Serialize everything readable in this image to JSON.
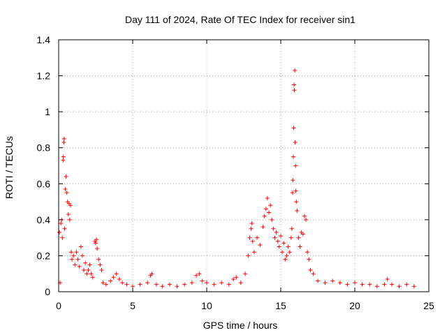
{
  "chart_data": {
    "type": "scatter",
    "title": "Day 111 of 2024, Rate Of TEC Index for receiver sin1",
    "xlabel": "GPS time / hours",
    "ylabel": "ROTI / TECUs",
    "xlim": [
      0,
      25
    ],
    "ylim": [
      0,
      1.4
    ],
    "x_ticks": [
      "0",
      "5",
      "10",
      "15",
      "20",
      "25"
    ],
    "y_ticks": [
      "0",
      "0.2",
      "0.4",
      "0.6",
      "0.8",
      "1",
      "1.2",
      "1.4"
    ],
    "grid": true,
    "marker": "+",
    "color": "#ff0000",
    "series": [
      {
        "name": "ROTI",
        "points": [
          [
            0.05,
            0.33
          ],
          [
            0.1,
            0.05
          ],
          [
            0.15,
            0.38
          ],
          [
            0.2,
            0.4
          ],
          [
            0.25,
            0.3
          ],
          [
            0.3,
            0.73
          ],
          [
            0.32,
            0.75
          ],
          [
            0.35,
            0.83
          ],
          [
            0.37,
            0.85
          ],
          [
            0.4,
            0.35
          ],
          [
            0.45,
            0.57
          ],
          [
            0.5,
            0.64
          ],
          [
            0.55,
            0.55
          ],
          [
            0.6,
            0.5
          ],
          [
            0.65,
            0.43
          ],
          [
            0.7,
            0.49
          ],
          [
            0.75,
            0.4
          ],
          [
            0.8,
            0.48
          ],
          [
            0.85,
            0.22
          ],
          [
            0.9,
            0.18
          ],
          [
            1.0,
            0.2
          ],
          [
            1.1,
            0.15
          ],
          [
            1.2,
            0.22
          ],
          [
            1.3,
            0.18
          ],
          [
            1.4,
            0.14
          ],
          [
            1.5,
            0.25
          ],
          [
            1.6,
            0.2
          ],
          [
            1.7,
            0.12
          ],
          [
            1.8,
            0.16
          ],
          [
            1.9,
            0.1
          ],
          [
            2.0,
            0.12
          ],
          [
            2.1,
            0.15
          ],
          [
            2.2,
            0.1
          ],
          [
            2.3,
            0.08
          ],
          [
            2.45,
            0.28
          ],
          [
            2.5,
            0.27
          ],
          [
            2.55,
            0.29
          ],
          [
            2.6,
            0.24
          ],
          [
            2.7,
            0.18
          ],
          [
            2.8,
            0.15
          ],
          [
            2.9,
            0.12
          ],
          [
            3.0,
            0.05
          ],
          [
            3.2,
            0.04
          ],
          [
            3.5,
            0.06
          ],
          [
            3.7,
            0.08
          ],
          [
            3.9,
            0.1
          ],
          [
            4.1,
            0.07
          ],
          [
            4.3,
            0.05
          ],
          [
            4.6,
            0.04
          ],
          [
            5.0,
            0.03
          ],
          [
            5.5,
            0.04
          ],
          [
            6.0,
            0.05
          ],
          [
            6.2,
            0.09
          ],
          [
            6.3,
            0.1
          ],
          [
            6.6,
            0.04
          ],
          [
            7.0,
            0.03
          ],
          [
            7.5,
            0.04
          ],
          [
            8.0,
            0.03
          ],
          [
            8.5,
            0.04
          ],
          [
            9.0,
            0.05
          ],
          [
            9.3,
            0.09
          ],
          [
            9.5,
            0.1
          ],
          [
            9.7,
            0.06
          ],
          [
            10.0,
            0.05
          ],
          [
            10.5,
            0.04
          ],
          [
            11.0,
            0.05
          ],
          [
            11.5,
            0.04
          ],
          [
            11.8,
            0.07
          ],
          [
            12.0,
            0.08
          ],
          [
            12.3,
            0.05
          ],
          [
            12.6,
            0.1
          ],
          [
            12.8,
            0.2
          ],
          [
            12.9,
            0.3
          ],
          [
            13.0,
            0.35
          ],
          [
            13.05,
            0.38
          ],
          [
            13.1,
            0.28
          ],
          [
            13.2,
            0.22
          ],
          [
            13.4,
            0.3
          ],
          [
            13.6,
            0.26
          ],
          [
            13.8,
            0.36
          ],
          [
            13.9,
            0.42
          ],
          [
            14.0,
            0.46
          ],
          [
            14.1,
            0.52
          ],
          [
            14.2,
            0.44
          ],
          [
            14.3,
            0.48
          ],
          [
            14.4,
            0.4
          ],
          [
            14.5,
            0.35
          ],
          [
            14.6,
            0.3
          ],
          [
            14.7,
            0.33
          ],
          [
            14.8,
            0.28
          ],
          [
            14.9,
            0.25
          ],
          [
            15.0,
            0.31
          ],
          [
            15.1,
            0.22
          ],
          [
            15.2,
            0.27
          ],
          [
            15.3,
            0.18
          ],
          [
            15.4,
            0.2
          ],
          [
            15.5,
            0.25
          ],
          [
            15.6,
            0.22
          ],
          [
            15.7,
            0.3
          ],
          [
            15.75,
            0.35
          ],
          [
            15.8,
            0.55
          ],
          [
            15.82,
            0.62
          ],
          [
            15.85,
            0.75
          ],
          [
            15.87,
            0.91
          ],
          [
            15.9,
            1.15
          ],
          [
            15.92,
            1.12
          ],
          [
            15.95,
            1.23
          ],
          [
            15.97,
            0.83
          ],
          [
            16.0,
            0.7
          ],
          [
            16.02,
            0.56
          ],
          [
            16.05,
            0.5
          ],
          [
            16.1,
            0.45
          ],
          [
            16.2,
            0.3
          ],
          [
            16.3,
            0.25
          ],
          [
            16.4,
            0.33
          ],
          [
            16.5,
            0.32
          ],
          [
            16.6,
            0.42
          ],
          [
            16.7,
            0.4
          ],
          [
            16.8,
            0.22
          ],
          [
            16.9,
            0.18
          ],
          [
            17.0,
            0.12
          ],
          [
            17.2,
            0.1
          ],
          [
            17.5,
            0.06
          ],
          [
            18.0,
            0.05
          ],
          [
            18.5,
            0.06
          ],
          [
            19.0,
            0.05
          ],
          [
            19.5,
            0.04
          ],
          [
            20.0,
            0.05
          ],
          [
            20.5,
            0.04
          ],
          [
            21.0,
            0.04
          ],
          [
            21.5,
            0.03
          ],
          [
            22.0,
            0.04
          ],
          [
            22.2,
            0.07
          ],
          [
            22.5,
            0.04
          ],
          [
            23.0,
            0.03
          ],
          [
            23.5,
            0.04
          ],
          [
            24.0,
            0.03
          ]
        ]
      }
    ]
  }
}
